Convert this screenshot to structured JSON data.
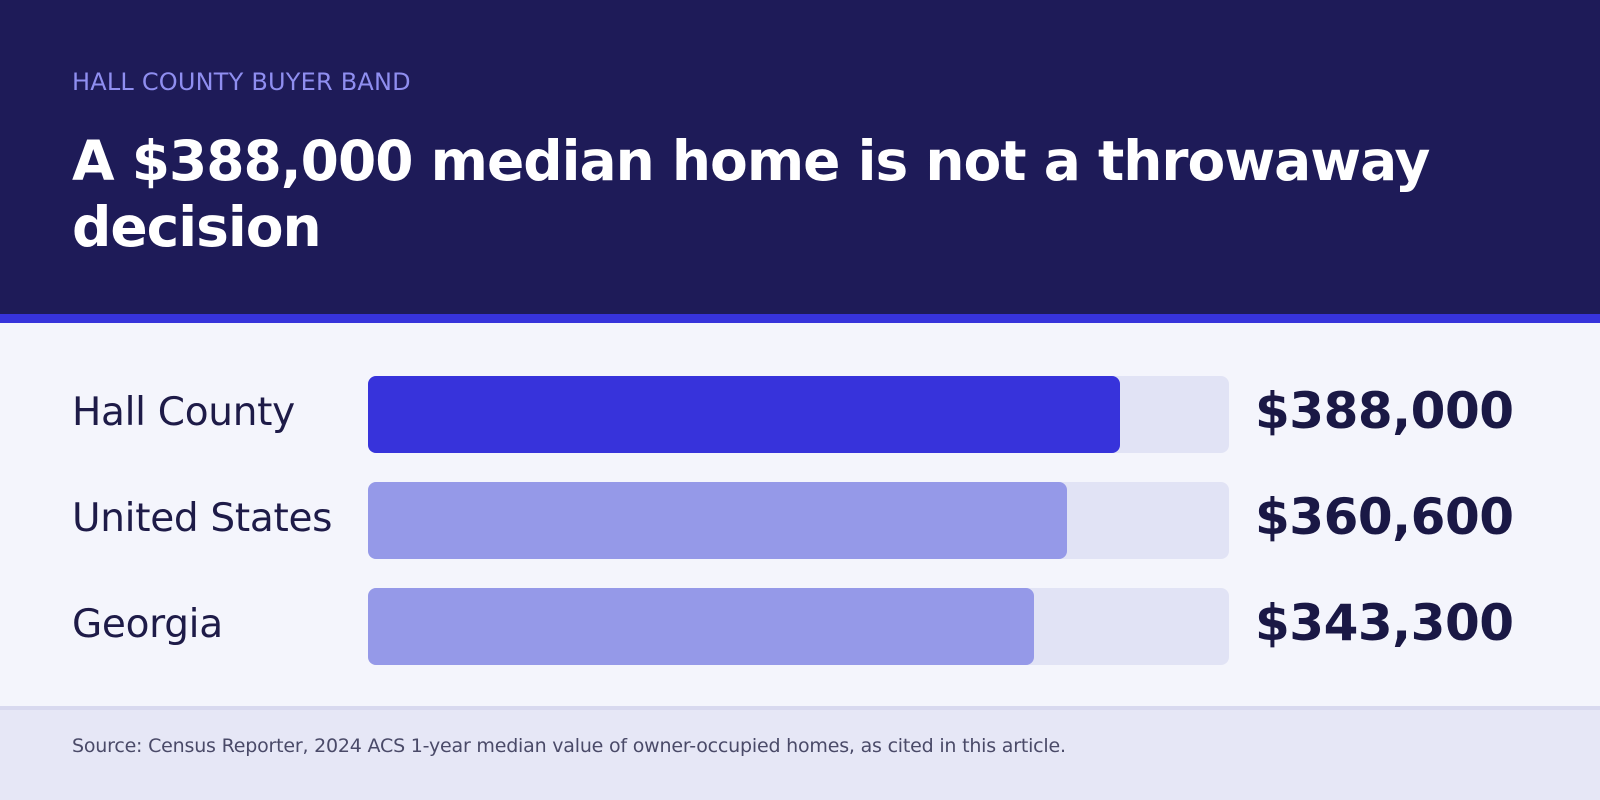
{
  "header": {
    "kicker": "HALL COUNTY BUYER BAND",
    "title": "A $388,000 median home is not a throwaway decision"
  },
  "chart_data": {
    "type": "bar",
    "orientation": "horizontal",
    "categories": [
      "Hall County",
      "United States",
      "Georgia"
    ],
    "values": [
      388000,
      360600,
      343300
    ],
    "value_labels": [
      "$388,000",
      "$360,600",
      "$343,300"
    ],
    "xlim": [
      0,
      444000
    ],
    "grid": false,
    "colors": {
      "highlight": "#3733db",
      "other": "#9599e8",
      "track": "#e1e3f5"
    },
    "highlight_index": 0
  },
  "footer": {
    "source": "Source: Census Reporter, 2024 ACS 1-year median value of owner-occupied homes, as cited in this article."
  }
}
